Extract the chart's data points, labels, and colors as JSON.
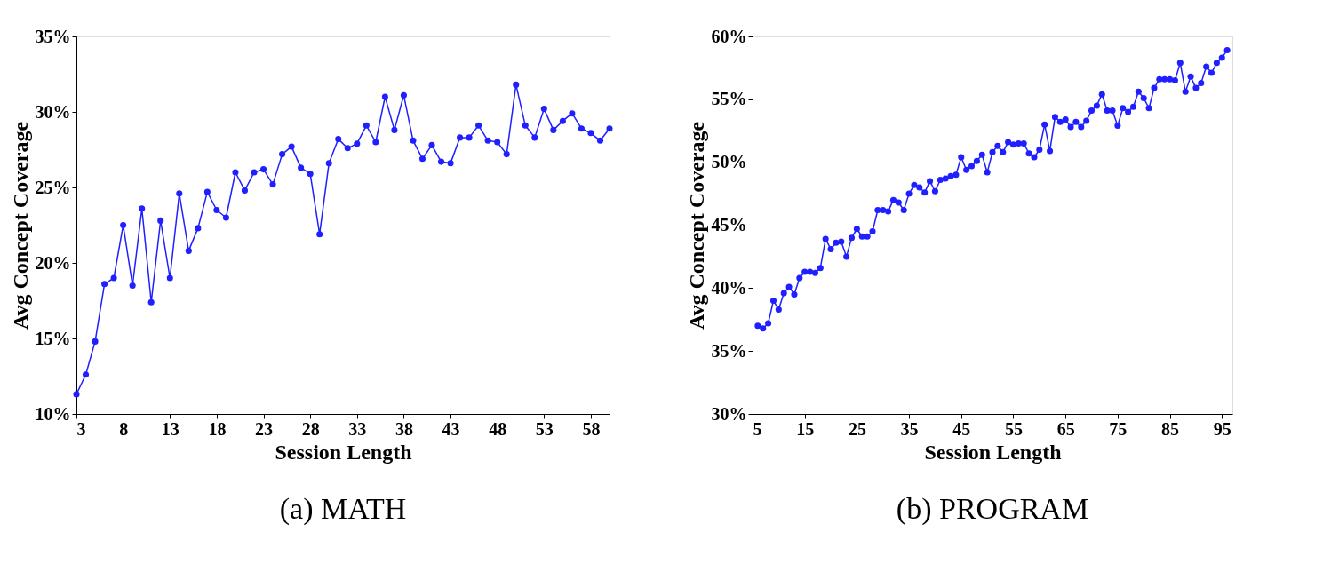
{
  "chart_data": [
    {
      "type": "line",
      "title": "(a)  MATH",
      "xlabel": "Session Length",
      "ylabel": "Avg Concept Coverage",
      "marker": "circle",
      "line_style": "solid",
      "grid": false,
      "x": [
        3,
        4,
        5,
        6,
        7,
        8,
        9,
        10,
        11,
        12,
        13,
        14,
        15,
        16,
        17,
        18,
        19,
        20,
        21,
        22,
        23,
        24,
        25,
        26,
        27,
        28,
        29,
        30,
        31,
        32,
        33,
        34,
        35,
        36,
        37,
        38,
        39,
        40,
        41,
        42,
        43,
        44,
        45,
        46,
        47,
        48,
        49,
        50,
        51,
        52,
        53,
        54,
        55,
        56,
        57,
        58,
        59,
        60
      ],
      "series": [
        {
          "color": "#1f1fff",
          "values": [
            11.3,
            12.6,
            14.8,
            18.6,
            19.0,
            22.5,
            18.5,
            23.6,
            17.4,
            22.8,
            19.0,
            24.6,
            20.8,
            22.3,
            24.7,
            23.5,
            23.0,
            26.0,
            24.8,
            26.0,
            26.2,
            25.2,
            27.2,
            27.7,
            26.3,
            25.9,
            21.9,
            26.6,
            28.2,
            27.6,
            27.9,
            29.1,
            28.0,
            31.0,
            28.8,
            31.1,
            28.1,
            26.9,
            27.8,
            26.7,
            26.6,
            28.3,
            28.3,
            29.1,
            28.1,
            28.0,
            27.2,
            31.8,
            29.1,
            28.3,
            30.2,
            28.8,
            29.4,
            29.9,
            28.9,
            28.6,
            28.1,
            28.9
          ]
        }
      ],
      "xlim": [
        3,
        60
      ],
      "xticks": [
        3,
        8,
        13,
        18,
        23,
        28,
        33,
        38,
        43,
        48,
        53,
        58
      ],
      "ylim": [
        10,
        35
      ],
      "yticks": [
        {
          "value": 10,
          "label": "10%"
        },
        {
          "value": 15,
          "label": "15%"
        },
        {
          "value": 20,
          "label": "20%"
        },
        {
          "value": 25,
          "label": "25%"
        },
        {
          "value": 30,
          "label": "30%"
        },
        {
          "value": 35,
          "label": "35%"
        }
      ]
    },
    {
      "type": "line",
      "title": "(b)  PROGRAM",
      "xlabel": "Session Length",
      "ylabel": "Avg Concept Coverage",
      "marker": "circle",
      "line_style": "solid",
      "grid": false,
      "x": [
        6,
        7,
        8,
        9,
        10,
        11,
        12,
        13,
        14,
        15,
        16,
        17,
        18,
        19,
        20,
        21,
        22,
        23,
        24,
        25,
        26,
        27,
        28,
        29,
        30,
        31,
        32,
        33,
        34,
        35,
        36,
        37,
        38,
        39,
        40,
        41,
        42,
        43,
        44,
        45,
        46,
        47,
        48,
        49,
        50,
        51,
        52,
        53,
        54,
        55,
        56,
        57,
        58,
        59,
        60,
        61,
        62,
        63,
        64,
        65,
        66,
        67,
        68,
        69,
        70,
        71,
        72,
        73,
        74,
        75,
        76,
        77,
        78,
        79,
        80,
        81,
        82,
        83,
        84,
        85,
        86,
        87,
        88,
        89,
        90,
        91,
        92,
        93,
        94,
        95,
        96
      ],
      "series": [
        {
          "color": "#1f1fff",
          "values": [
            37.0,
            36.8,
            37.2,
            39.0,
            38.3,
            39.6,
            40.1,
            39.5,
            40.8,
            41.3,
            41.3,
            41.2,
            41.6,
            43.9,
            43.1,
            43.6,
            43.7,
            42.5,
            44.0,
            44.7,
            44.1,
            44.1,
            44.5,
            46.2,
            46.2,
            46.1,
            47.0,
            46.8,
            46.2,
            47.5,
            48.2,
            48.0,
            47.6,
            48.5,
            47.7,
            48.6,
            48.7,
            48.9,
            49.0,
            50.4,
            49.4,
            49.7,
            50.1,
            50.6,
            49.2,
            50.8,
            51.3,
            50.8,
            51.6,
            51.4,
            51.5,
            51.5,
            50.7,
            50.4,
            51.0,
            53.0,
            50.9,
            53.6,
            53.2,
            53.4,
            52.8,
            53.2,
            52.8,
            53.3,
            54.1,
            54.5,
            55.4,
            54.1,
            54.1,
            52.9,
            54.3,
            54.0,
            54.4,
            55.6,
            55.1,
            54.3,
            55.9,
            56.6,
            56.6,
            56.6,
            56.5,
            57.9,
            55.6,
            56.8,
            55.9,
            56.3,
            57.6,
            57.1,
            57.9,
            58.3,
            58.9
          ]
        }
      ],
      "xlim": [
        5,
        97
      ],
      "xticks": [
        5,
        15,
        25,
        35,
        45,
        55,
        65,
        75,
        85,
        95
      ],
      "ylim": [
        30,
        60
      ],
      "yticks": [
        {
          "value": 30,
          "label": "30%"
        },
        {
          "value": 35,
          "label": "35%"
        },
        {
          "value": 40,
          "label": "40%"
        },
        {
          "value": 45,
          "label": "45%"
        },
        {
          "value": 50,
          "label": "50%"
        },
        {
          "value": 55,
          "label": "55%"
        },
        {
          "value": 60,
          "label": "60%"
        }
      ]
    }
  ]
}
